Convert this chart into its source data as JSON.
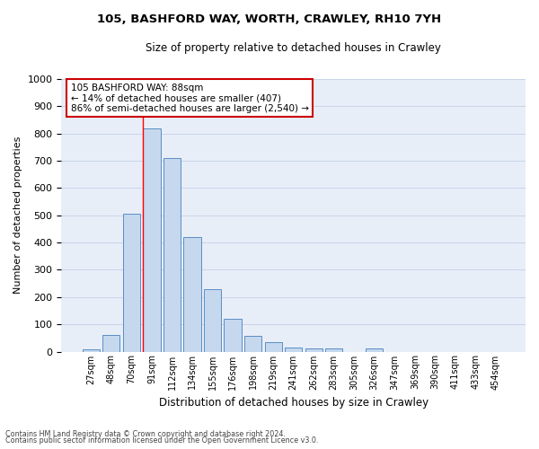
{
  "title": "105, BASHFORD WAY, WORTH, CRAWLEY, RH10 7YH",
  "subtitle": "Size of property relative to detached houses in Crawley",
  "xlabel": "Distribution of detached houses by size in Crawley",
  "ylabel": "Number of detached properties",
  "bin_labels": [
    "27sqm",
    "48sqm",
    "70sqm",
    "91sqm",
    "112sqm",
    "134sqm",
    "155sqm",
    "176sqm",
    "198sqm",
    "219sqm",
    "241sqm",
    "262sqm",
    "283sqm",
    "305sqm",
    "326sqm",
    "347sqm",
    "369sqm",
    "390sqm",
    "411sqm",
    "433sqm",
    "454sqm"
  ],
  "bar_values": [
    8,
    60,
    505,
    820,
    710,
    420,
    230,
    120,
    57,
    35,
    15,
    12,
    10,
    0,
    10,
    0,
    0,
    0,
    0,
    0,
    0
  ],
  "bar_color": "#c5d8ee",
  "bar_edge_color": "#5b8ec4",
  "ylim": [
    0,
    1000
  ],
  "yticks": [
    0,
    100,
    200,
    300,
    400,
    500,
    600,
    700,
    800,
    900,
    1000
  ],
  "red_line_index": 3,
  "annotation_title": "105 BASHFORD WAY: 88sqm",
  "annotation_line1": "← 14% of detached houses are smaller (407)",
  "annotation_line2": "86% of semi-detached houses are larger (2,540) →",
  "annotation_box_color": "#ffffff",
  "annotation_box_edge": "#cc0000",
  "grid_color": "#c8d4e8",
  "background_color": "#e8eef8",
  "footer_line1": "Contains HM Land Registry data © Crown copyright and database right 2024.",
  "footer_line2": "Contains public sector information licensed under the Open Government Licence v3.0."
}
